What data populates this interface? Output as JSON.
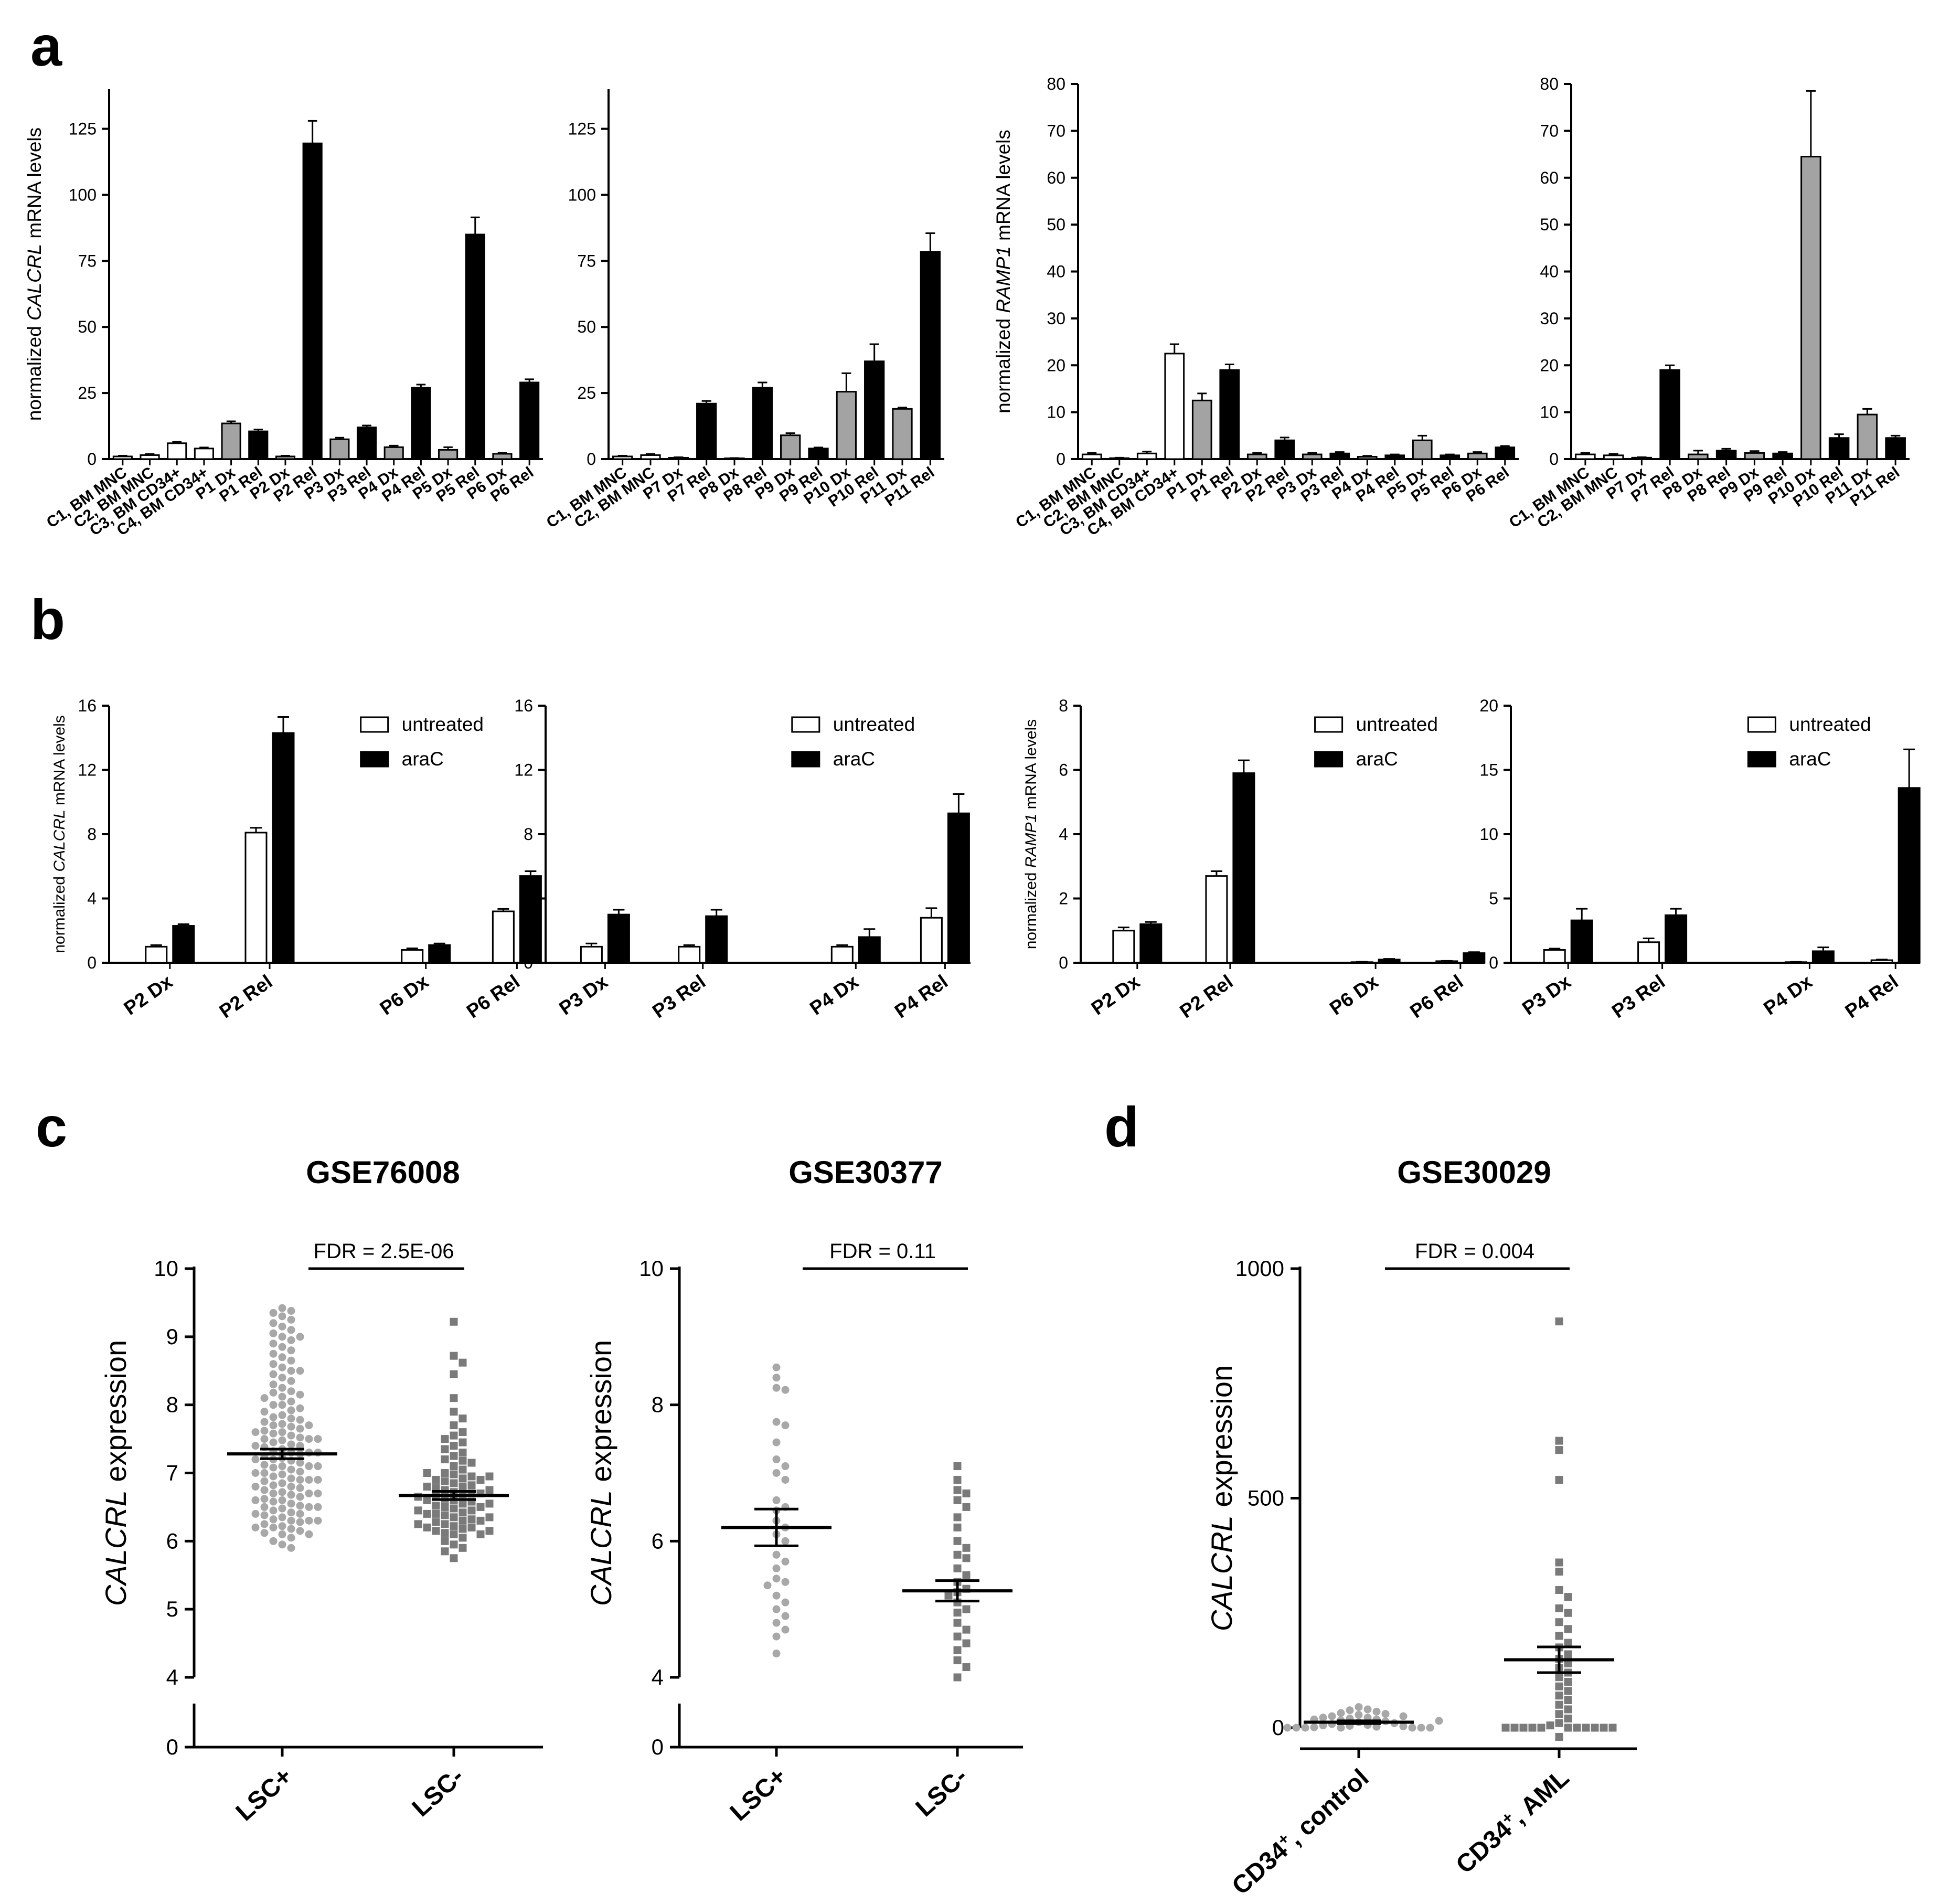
{
  "panel_letters": [
    "a",
    "b",
    "c",
    "d"
  ],
  "chart_data": [
    {
      "id": "a1",
      "type": "bar",
      "panel": "a",
      "ylabel_pre": "normalized ",
      "ylabel_gene": "CALCRL",
      "ylabel_post": " mRNA levels",
      "ylim": [
        0,
        140
      ],
      "yticks": [
        0,
        25,
        50,
        75,
        100,
        125
      ],
      "categories": [
        "C1, BM MNC",
        "C2, BM MNC",
        "C3, BM CD34+",
        "C4, BM CD34+",
        "P1 Dx",
        "P1 Rel",
        "P2 Dx",
        "P2 Rel",
        "P3 Dx",
        "P3 Rel",
        "P4 Dx",
        "P4 Rel",
        "P5 Dx",
        "P5 Rel",
        "P6 Dx",
        "P6 Rel"
      ],
      "values": [
        1,
        1.5,
        6,
        4,
        13.5,
        10.5,
        1,
        119.5,
        7.5,
        12,
        4.5,
        27,
        3.5,
        85,
        2,
        29
      ],
      "errors": [
        0.3,
        0.4,
        0.5,
        0.4,
        0.8,
        0.7,
        0.3,
        8.5,
        0.6,
        0.7,
        0.6,
        1.2,
        1.0,
        6.5,
        0.3,
        1.2
      ],
      "fills": [
        "white",
        "white",
        "white",
        "white",
        "gray",
        "black",
        "gray",
        "black",
        "gray",
        "black",
        "gray",
        "black",
        "gray",
        "black",
        "gray",
        "black"
      ]
    },
    {
      "id": "a2",
      "type": "bar",
      "panel": "a",
      "ylim": [
        0,
        140
      ],
      "yticks": [
        0,
        25,
        50,
        75,
        100,
        125
      ],
      "categories": [
        "C1, BM MNC",
        "C2, BM MNC",
        "P7 Dx",
        "P7 Rel",
        "P8 Dx",
        "P8 Rel",
        "P9 Dx",
        "P9 Rel",
        "P10 Dx",
        "P10 Rel",
        "P11 Dx",
        "P11 Rel"
      ],
      "values": [
        1,
        1.5,
        0.5,
        21,
        0.3,
        27,
        9,
        4,
        25.5,
        37,
        19,
        78.5
      ],
      "errors": [
        0.3,
        0.4,
        0.2,
        1,
        0.1,
        2,
        0.8,
        0.4,
        7,
        6.5,
        0.5,
        7
      ],
      "fills": [
        "white",
        "white",
        "gray",
        "black",
        "gray",
        "black",
        "gray",
        "black",
        "gray",
        "black",
        "gray",
        "black"
      ]
    },
    {
      "id": "a3",
      "type": "bar",
      "panel": "a",
      "ylabel_pre": "normalized ",
      "ylabel_gene": "RAMP1",
      "ylabel_post": " mRNA levels",
      "ylim": [
        0,
        80
      ],
      "yticks": [
        0,
        10,
        20,
        30,
        40,
        50,
        60,
        70,
        80
      ],
      "categories": [
        "C1, BM MNC",
        "C2, BM MNC",
        "C3, BM CD34+",
        "C4, BM CD34+",
        "P1 Dx",
        "P1 Rel",
        "P2 Dx",
        "P2 Rel",
        "P3 Dx",
        "P3 Rel",
        "P4 Dx",
        "P4 Rel",
        "P5 Dx",
        "P5 Rel",
        "P6 Dx",
        "P6 Rel"
      ],
      "values": [
        1,
        0.2,
        1.2,
        22.5,
        12.5,
        19,
        1,
        4,
        1,
        1.2,
        0.5,
        0.8,
        4,
        0.8,
        1.2,
        2.5
      ],
      "errors": [
        0.3,
        0.1,
        0.4,
        2,
        1.5,
        1.2,
        0.3,
        0.6,
        0.3,
        0.3,
        0.2,
        0.2,
        1,
        0.2,
        0.3,
        0.3
      ],
      "fills": [
        "white",
        "white",
        "white",
        "white",
        "gray",
        "black",
        "gray",
        "black",
        "gray",
        "black",
        "gray",
        "black",
        "gray",
        "black",
        "gray",
        "black"
      ]
    },
    {
      "id": "a4",
      "type": "bar",
      "panel": "a",
      "ylim": [
        0,
        80
      ],
      "yticks": [
        0,
        10,
        20,
        30,
        40,
        50,
        60,
        70,
        80
      ],
      "categories": [
        "C1, BM MNC",
        "C2, BM MNC",
        "P7 Dx",
        "P7 Rel",
        "P8 Dx",
        "P8 Rel",
        "P9 Dx",
        "P9 Rel",
        "P10 Dx",
        "P10 Rel",
        "P11 Dx",
        "P11 Rel"
      ],
      "values": [
        1,
        0.8,
        0.3,
        19,
        1,
        1.8,
        1.3,
        1.2,
        64.5,
        4.5,
        9.5,
        4.5
      ],
      "errors": [
        0.3,
        0.3,
        0.1,
        1,
        0.8,
        0.4,
        0.4,
        0.3,
        14,
        0.8,
        1.2,
        0.5
      ],
      "fills": [
        "white",
        "white",
        "gray",
        "black",
        "gray",
        "black",
        "gray",
        "black",
        "gray",
        "black",
        "gray",
        "black"
      ]
    },
    {
      "id": "b1",
      "type": "grouped-bar",
      "panel": "b",
      "ylabel_pre": "normalized ",
      "ylabel_gene": "CALCRL",
      "ylabel_post": " mRNA levels",
      "ylim": [
        0,
        16
      ],
      "yticks": [
        0,
        4,
        8,
        12,
        16
      ],
      "categories": [
        "P2 Dx",
        "P2 Rel",
        "P6 Dx",
        "P6 Rel"
      ],
      "series": [
        {
          "name": "untreated",
          "values": [
            1,
            8.1,
            0.8,
            3.2
          ],
          "errors": [
            0.1,
            0.3,
            0.1,
            0.15
          ]
        },
        {
          "name": "araC",
          "values": [
            2.3,
            14.3,
            1.1,
            5.4
          ],
          "errors": [
            0.1,
            1.0,
            0.1,
            0.3
          ]
        }
      ]
    },
    {
      "id": "b2",
      "type": "grouped-bar",
      "panel": "b",
      "ylim": [
        0,
        16
      ],
      "yticks": [
        0,
        4,
        8,
        12,
        16
      ],
      "categories": [
        "P3 Dx",
        "P3 Rel",
        "P4 Dx",
        "P4 Rel"
      ],
      "series": [
        {
          "name": "untreated",
          "values": [
            1,
            1,
            1,
            2.8
          ],
          "errors": [
            0.2,
            0.1,
            0.1,
            0.6
          ]
        },
        {
          "name": "araC",
          "values": [
            3,
            2.9,
            1.6,
            9.3
          ],
          "errors": [
            0.3,
            0.4,
            0.5,
            1.2
          ]
        }
      ]
    },
    {
      "id": "b3",
      "type": "grouped-bar",
      "panel": "b",
      "ylabel_pre": "normalized ",
      "ylabel_gene": "RAMP1",
      "ylabel_post": " mRNA levels",
      "ylim": [
        0,
        8
      ],
      "yticks": [
        0,
        2,
        4,
        6,
        8
      ],
      "categories": [
        "P2 Dx",
        "P2 Rel",
        "P6 Dx",
        "P6 Rel"
      ],
      "series": [
        {
          "name": "untreated",
          "values": [
            1,
            2.7,
            0.02,
            0.05
          ],
          "errors": [
            0.1,
            0.15,
            0.01,
            0.01
          ]
        },
        {
          "name": "araC",
          "values": [
            1.2,
            5.9,
            0.1,
            0.3
          ],
          "errors": [
            0.07,
            0.4,
            0.02,
            0.03
          ]
        }
      ]
    },
    {
      "id": "b4",
      "type": "grouped-bar",
      "panel": "b",
      "ylim": [
        0,
        20
      ],
      "yticks": [
        0,
        5,
        10,
        15,
        20
      ],
      "categories": [
        "P3 Dx",
        "P3 Rel",
        "P4 Dx",
        "P4 Rel"
      ],
      "series": [
        {
          "name": "untreated",
          "values": [
            1,
            1.6,
            0.05,
            0.2
          ],
          "errors": [
            0.1,
            0.3,
            0.02,
            0.05
          ]
        },
        {
          "name": "araC",
          "values": [
            3.3,
            3.7,
            0.9,
            13.6
          ],
          "errors": [
            0.9,
            0.5,
            0.3,
            3
          ]
        }
      ]
    },
    {
      "id": "c1",
      "type": "scatter",
      "panel": "c",
      "title": "GSE76008",
      "ylabel_gene": "CALCRL",
      "ylabel_post": " expression",
      "yticks": [
        4,
        5,
        6,
        7,
        8,
        9,
        10
      ],
      "ybreak_tick": 0,
      "fdr_label": "FDR = 2.5E-06",
      "groups": [
        {
          "label": "LSC+",
          "mean": 7.28,
          "sem": 0.07,
          "color": "#a8a8a8",
          "marker": "circle",
          "points": [
            9.42,
            9.38,
            9.35,
            9.3,
            9.25,
            9.2,
            9.15,
            9.1,
            9.05,
            9.0,
            9.0,
            8.95,
            8.9,
            8.85,
            8.8,
            8.75,
            8.7,
            8.65,
            8.6,
            8.55,
            8.5,
            8.5,
            8.45,
            8.4,
            8.35,
            8.3,
            8.25,
            8.2,
            8.18,
            8.15,
            8.12,
            8.1,
            8.05,
            8.0,
            8.0,
            7.95,
            7.92,
            7.9,
            7.85,
            7.82,
            7.8,
            7.78,
            7.75,
            7.72,
            7.7,
            7.68,
            7.65,
            7.62,
            7.6,
            7.58,
            7.55,
            7.52,
            7.5,
            7.48,
            7.45,
            7.42,
            7.4,
            7.38,
            7.35,
            7.32,
            7.3,
            7.28,
            7.25,
            7.22,
            7.2,
            7.18,
            7.15,
            7.12,
            7.1,
            7.08,
            7.05,
            7.02,
            7.0,
            6.98,
            6.95,
            6.92,
            6.9,
            6.88,
            6.85,
            6.82,
            6.8,
            6.78,
            6.75,
            6.72,
            6.7,
            6.68,
            6.65,
            6.62,
            6.6,
            6.58,
            6.55,
            6.52,
            6.5,
            6.48,
            6.45,
            6.42,
            6.4,
            6.38,
            6.35,
            6.32,
            6.3,
            6.28,
            6.25,
            6.22,
            6.2,
            6.18,
            6.15,
            6.12,
            6.1,
            6.05,
            6.0,
            5.95,
            5.9,
            7.5,
            7.3,
            7.1,
            6.9,
            6.7,
            6.5,
            6.3,
            7.6,
            7.4,
            7.2,
            7.0,
            6.8,
            6.6,
            6.4,
            6.2,
            7.7,
            7.5,
            7.3,
            7.1,
            6.9,
            6.7,
            6.5,
            6.3,
            6.1
          ]
        },
        {
          "label": "LSC-",
          "mean": 6.67,
          "sem": 0.06,
          "color": "#7a7a7a",
          "marker": "square",
          "points": [
            9.22,
            8.72,
            8.62,
            8.45,
            8.1,
            7.9,
            7.8,
            7.7,
            7.6,
            7.55,
            7.5,
            7.45,
            7.4,
            7.35,
            7.3,
            7.25,
            7.2,
            7.18,
            7.15,
            7.1,
            7.05,
            7.0,
            6.98,
            6.95,
            6.92,
            6.9,
            6.88,
            6.85,
            6.82,
            6.8,
            6.78,
            6.75,
            6.72,
            6.7,
            6.68,
            6.65,
            6.62,
            6.6,
            6.58,
            6.55,
            6.52,
            6.5,
            6.48,
            6.45,
            6.42,
            6.4,
            6.38,
            6.35,
            6.32,
            6.3,
            6.28,
            6.25,
            6.22,
            6.2,
            6.18,
            6.15,
            6.12,
            6.1,
            6.05,
            6.0,
            5.95,
            5.9,
            5.85,
            5.75,
            6.9,
            6.7,
            6.5,
            6.3,
            6.1,
            6.8,
            6.6,
            6.4,
            6.2,
            7.0,
            6.75,
            6.55,
            6.35,
            6.15,
            6.95,
            6.65,
            6.45,
            6.25
          ]
        }
      ]
    },
    {
      "id": "c2",
      "type": "scatter",
      "panel": "c",
      "title": "GSE30377",
      "ylabel_gene": "CALCRL",
      "ylabel_post": " expression",
      "yticks": [
        4,
        6,
        8,
        10
      ],
      "ybreak_tick": 0,
      "fdr_label": "FDR = 0.11",
      "groups": [
        {
          "label": "LSC+",
          "mean": 6.2,
          "sem": 0.27,
          "color": "#a8a8a8",
          "marker": "circle",
          "points": [
            8.55,
            8.4,
            8.25,
            8.22,
            7.75,
            7.7,
            7.45,
            7.2,
            7.1,
            7.0,
            6.9,
            6.6,
            6.5,
            6.45,
            6.3,
            6.2,
            6.1,
            6.0,
            5.8,
            5.7,
            5.6,
            5.45,
            5.4,
            5.35,
            5.2,
            5.1,
            5.0,
            4.9,
            4.8,
            4.7,
            4.6,
            4.35
          ]
        },
        {
          "label": "LSC-",
          "mean": 5.27,
          "sem": 0.15,
          "color": "#7a7a7a",
          "marker": "square",
          "points": [
            7.1,
            6.9,
            6.75,
            6.7,
            6.6,
            6.5,
            6.35,
            6.2,
            6.0,
            5.9,
            5.8,
            5.75,
            5.6,
            5.5,
            5.4,
            5.3,
            5.25,
            5.2,
            5.1,
            5.0,
            4.95,
            4.8,
            4.7,
            4.6,
            4.5,
            4.4,
            4.25,
            4.15,
            4.0
          ]
        }
      ]
    },
    {
      "id": "d1",
      "type": "scatter",
      "panel": "d",
      "title": "GSE30029",
      "ylabel_gene": "CALCRL",
      "ylabel_post": " expression",
      "yticks": [
        0,
        500,
        1000
      ],
      "fdr_label": "FDR = 0.004",
      "groups": [
        {
          "label_pre": "CD34",
          "label_sup": "+",
          "label_post": ", control",
          "mean": 12,
          "sem": 3,
          "color": "#a8a8a8",
          "marker": "circle",
          "points": [
            45,
            40,
            38,
            35,
            32,
            30,
            28,
            25,
            22,
            20,
            18,
            16,
            14,
            12,
            10,
            8,
            6,
            5,
            4,
            3,
            2,
            1,
            0,
            0,
            0,
            0,
            0,
            0,
            0,
            15,
            18,
            22,
            25
          ]
        },
        {
          "label_pre": "CD34",
          "label_sup": "+",
          "label_post": ", AML",
          "mean": 148,
          "sem": 28,
          "color": "#7a7a7a",
          "marker": "square",
          "points": [
            885,
            625,
            605,
            540,
            360,
            340,
            300,
            285,
            260,
            250,
            230,
            215,
            200,
            185,
            175,
            160,
            150,
            140,
            130,
            120,
            110,
            100,
            90,
            80,
            70,
            60,
            50,
            40,
            30,
            20,
            10,
            5,
            0,
            0,
            0,
            0,
            0,
            0,
            0,
            0,
            0,
            0,
            0,
            -20
          ]
        }
      ]
    }
  ]
}
